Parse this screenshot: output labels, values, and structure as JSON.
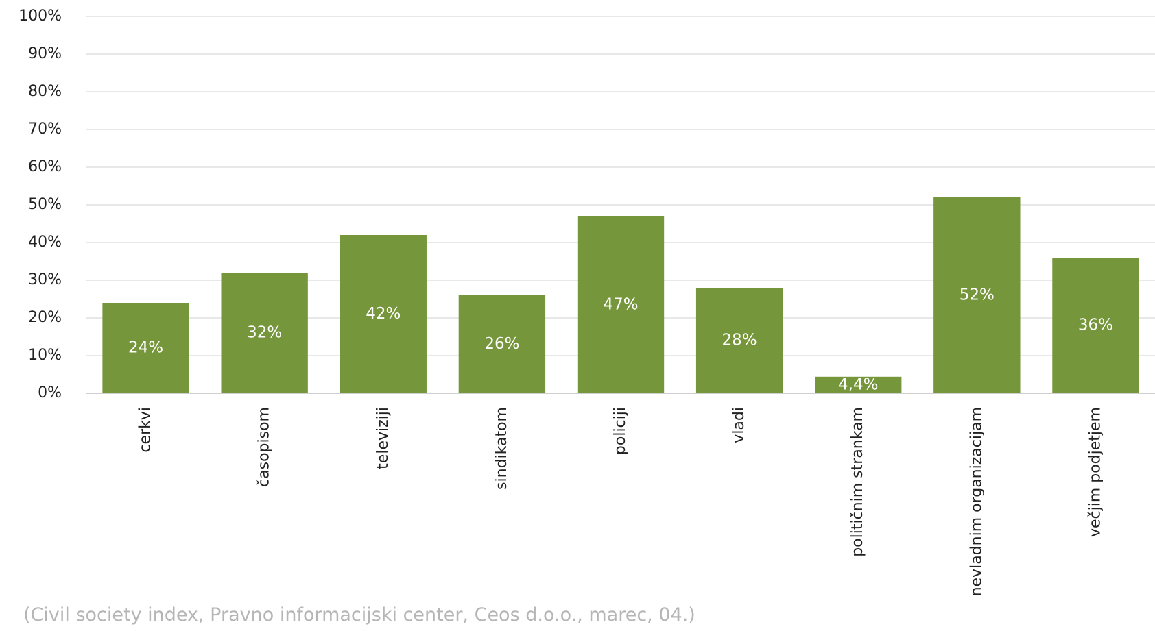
{
  "chart_data": {
    "type": "bar",
    "categories": [
      "cerkvi",
      "časopisom",
      "televiziji",
      "sindikatom",
      "policiji",
      "vladi",
      "političnim strankam",
      "nevladnim organizacijam",
      "večjim podjetjem"
    ],
    "values": [
      24,
      32,
      42,
      26,
      47,
      28,
      4.4,
      52,
      36
    ],
    "data_labels": [
      "24%",
      "32%",
      "42%",
      "26%",
      "47%",
      "28%",
      "4,4%",
      "52%",
      "36%"
    ],
    "y_ticks": [
      "0%",
      "10%",
      "20%",
      "30%",
      "40%",
      "50%",
      "60%",
      "70%",
      "80%",
      "90%",
      "100%"
    ],
    "ylim": [
      0,
      100
    ],
    "title": "",
    "xlabel": "",
    "ylabel": "",
    "grid": true,
    "legend": "none",
    "bar_color": "#76963c",
    "grid_color": "#d9d9d9",
    "axis_color": "#bfbfbf"
  },
  "source_note": "(Civil society index, Pravno informacijski center, Ceos d.o.o., marec, 04.)"
}
